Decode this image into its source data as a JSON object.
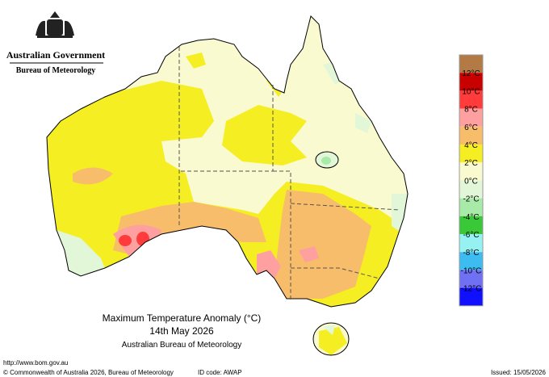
{
  "header": {
    "government": "Australian Government",
    "bureau": "Bureau of Meteorology"
  },
  "title": {
    "line1": "Maximum Temperature Anomaly (°C)",
    "line2": "14th May 2026",
    "line3": "Australian Bureau of Meteorology"
  },
  "legend": {
    "colors": [
      "#b37a45",
      "#c80000",
      "#ff3b3b",
      "#ffa0a0",
      "#f7bd6a",
      "#f4ee22",
      "#fafad0",
      "#e2f6d8",
      "#a8eaa8",
      "#38c838",
      "#96f2f2",
      "#3cbcf0",
      "#7070f4",
      "#1010ff"
    ],
    "labels": [
      "12°C",
      "10°C",
      "8°C",
      "6°C",
      "4°C",
      "2°C",
      "0°C",
      "-2°C",
      "-4°C",
      "-6°C",
      "-8°C",
      "-10°C",
      "-12°C"
    ]
  },
  "footer": {
    "url": "http://www.bom.gov.au",
    "copyright": "© Commonwealth of Australia 2026, Bureau of Meteorology",
    "id_code": "ID code: AWAP",
    "issued": "Issued: 15/05/2026"
  }
}
